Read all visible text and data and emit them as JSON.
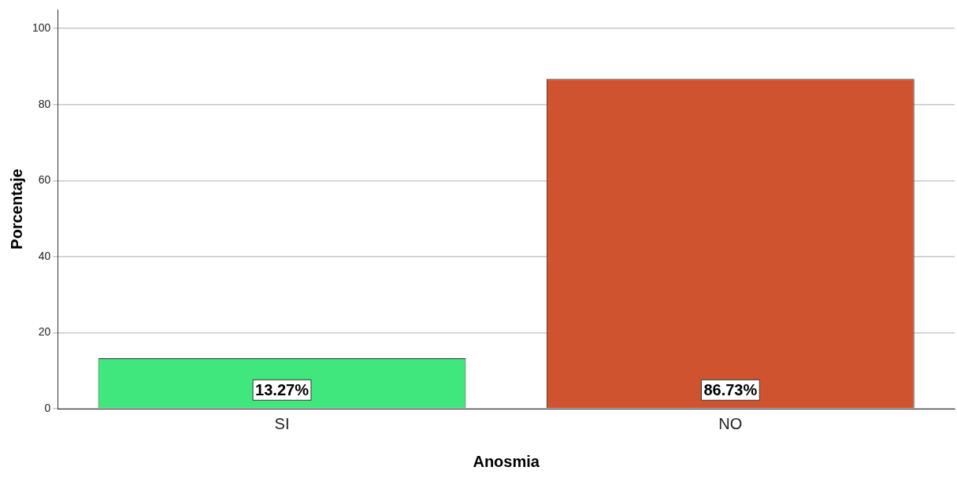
{
  "chart_data": {
    "type": "bar",
    "xlabel": "Anosmia",
    "ylabel": "Porcentaje",
    "categories": [
      "SI",
      "NO"
    ],
    "values": [
      13.27,
      86.73
    ],
    "colors": [
      "#40e77c",
      "#d0532f"
    ],
    "value_labels": [
      "13.27%",
      "86.73%"
    ],
    "ylim": [
      0,
      105
    ],
    "yticks": [
      0,
      20,
      40,
      60,
      80,
      100
    ],
    "grid": "y"
  }
}
